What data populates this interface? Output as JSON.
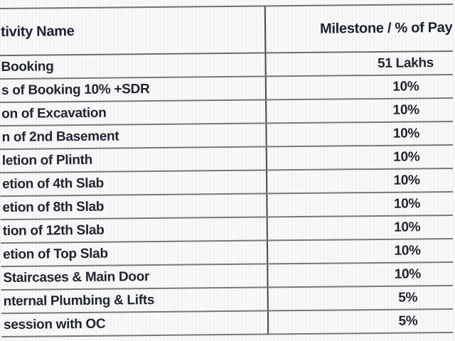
{
  "colors": {
    "background": "#f5f5f6",
    "text": "#20242e",
    "grid_line": "#74757b",
    "column_divider": "#46474e"
  },
  "table": {
    "columns": [
      {
        "label": "tivity Name"
      },
      {
        "label": "Milestone / % of Pay"
      }
    ],
    "rows": [
      {
        "activity": "Booking",
        "milestone": "51 Lakhs"
      },
      {
        "activity": "s of Booking 10% +SDR",
        "milestone": "10%"
      },
      {
        "activity": "on of Excavation",
        "milestone": "10%"
      },
      {
        "activity": "n of 2nd Basement",
        "milestone": "10%"
      },
      {
        "activity": "letion of Plinth",
        "milestone": "10%"
      },
      {
        "activity": "etion of 4th Slab",
        "milestone": "10%"
      },
      {
        "activity": "etion of 8th Slab",
        "milestone": "10%"
      },
      {
        "activity": "tion of 12th Slab",
        "milestone": "10%"
      },
      {
        "activity": "etion of Top Slab",
        "milestone": "10%"
      },
      {
        "activity": "Staircases & Main Door",
        "milestone": "10%"
      },
      {
        "activity": "nternal Plumbing & Lifts",
        "milestone": "5%"
      },
      {
        "activity": "session with OC",
        "milestone": "5%"
      }
    ]
  }
}
